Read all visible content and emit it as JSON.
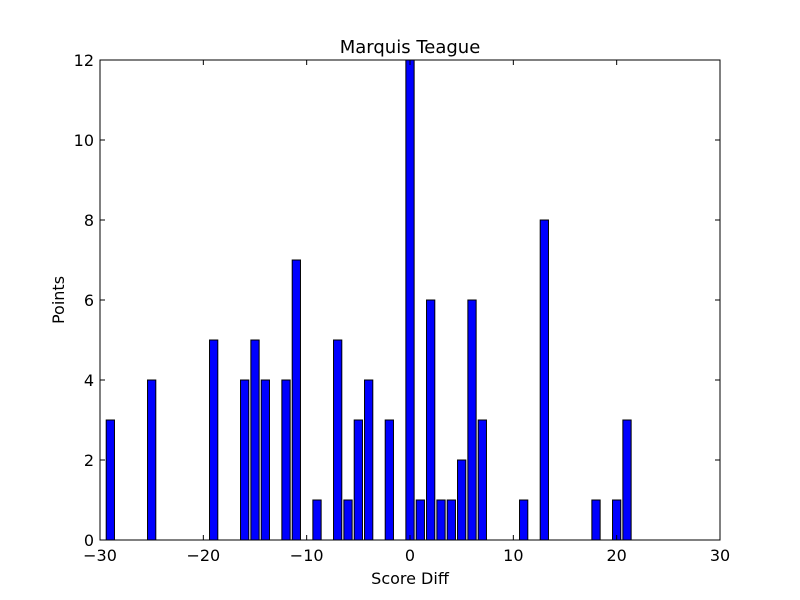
{
  "chart_data": {
    "type": "bar",
    "title": "Marquis Teague",
    "xlabel": "Score Diff",
    "ylabel": "Points",
    "xlim": [
      -30,
      30
    ],
    "ylim": [
      0,
      12
    ],
    "xticks": [
      -30,
      -20,
      -10,
      0,
      10,
      20,
      30
    ],
    "xtick_labels": [
      "−30",
      "−20",
      "−10",
      "0",
      "10",
      "20",
      "30"
    ],
    "yticks": [
      0,
      2,
      4,
      6,
      8,
      10,
      12
    ],
    "ytick_labels": [
      "0",
      "2",
      "4",
      "6",
      "8",
      "10",
      "12"
    ],
    "grid": false,
    "bar_color": "#0000ff",
    "edge_color": "#000000",
    "bar_width": 0.8,
    "points": [
      {
        "x": -29,
        "y": 3
      },
      {
        "x": -25,
        "y": 4
      },
      {
        "x": -19,
        "y": 5
      },
      {
        "x": -16,
        "y": 4
      },
      {
        "x": -15,
        "y": 5
      },
      {
        "x": -14,
        "y": 4
      },
      {
        "x": -12,
        "y": 4
      },
      {
        "x": -11,
        "y": 7
      },
      {
        "x": -9,
        "y": 1
      },
      {
        "x": -7,
        "y": 5
      },
      {
        "x": -6,
        "y": 1
      },
      {
        "x": -5,
        "y": 3
      },
      {
        "x": -4,
        "y": 4
      },
      {
        "x": -2,
        "y": 3
      },
      {
        "x": 0,
        "y": 12
      },
      {
        "x": 1,
        "y": 1
      },
      {
        "x": 2,
        "y": 6
      },
      {
        "x": 3,
        "y": 1
      },
      {
        "x": 4,
        "y": 1
      },
      {
        "x": 5,
        "y": 2
      },
      {
        "x": 6,
        "y": 6
      },
      {
        "x": 7,
        "y": 3
      },
      {
        "x": 11,
        "y": 1
      },
      {
        "x": 13,
        "y": 8
      },
      {
        "x": 18,
        "y": 1
      },
      {
        "x": 20,
        "y": 1
      },
      {
        "x": 21,
        "y": 3
      }
    ]
  }
}
